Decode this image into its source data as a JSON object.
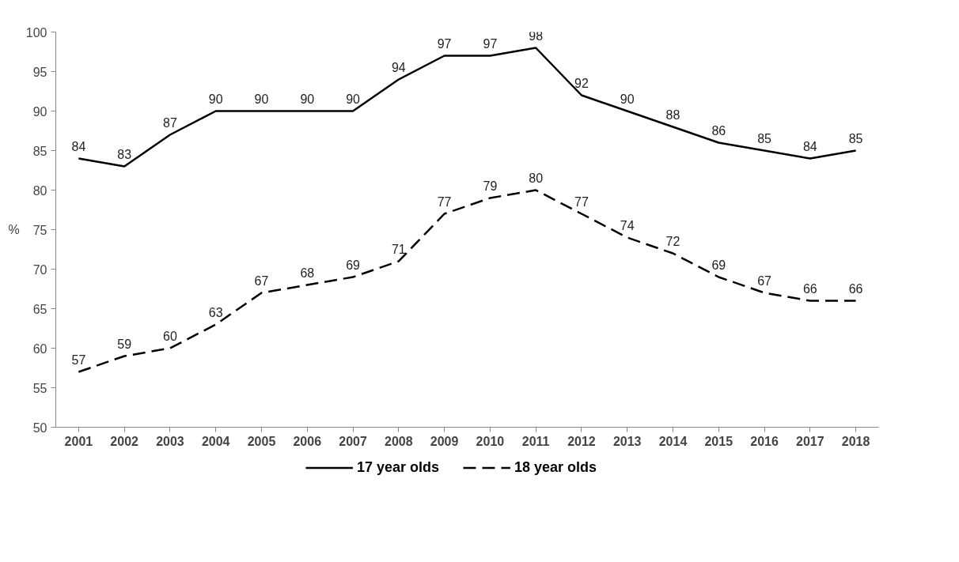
{
  "chart_data": {
    "type": "line",
    "ylabel": "%",
    "categories": [
      "2001",
      "2002",
      "2003",
      "2004",
      "2005",
      "2006",
      "2007",
      "2008",
      "2009",
      "2010",
      "2011",
      "2012",
      "2013",
      "2014",
      "2015",
      "2016",
      "2017",
      "2018"
    ],
    "series": [
      {
        "name": "17 year olds",
        "color": "#000000",
        "line_style": "solid",
        "values": [
          84,
          83,
          87,
          90,
          90,
          90,
          90,
          94,
          97,
          97,
          98,
          92,
          90,
          88,
          86,
          85,
          84,
          85
        ]
      },
      {
        "name": "18 year olds",
        "color": "#000000",
        "line_style": "dashed",
        "values": [
          57,
          59,
          60,
          63,
          67,
          68,
          69,
          71,
          77,
          79,
          80,
          77,
          74,
          72,
          69,
          67,
          66,
          66
        ]
      }
    ],
    "ylim": [
      50,
      100
    ],
    "yticks": [
      50,
      55,
      60,
      65,
      70,
      75,
      80,
      85,
      90,
      95,
      100
    ],
    "data_labels": true,
    "grid": false,
    "legend": "bottom",
    "marker": "none"
  }
}
